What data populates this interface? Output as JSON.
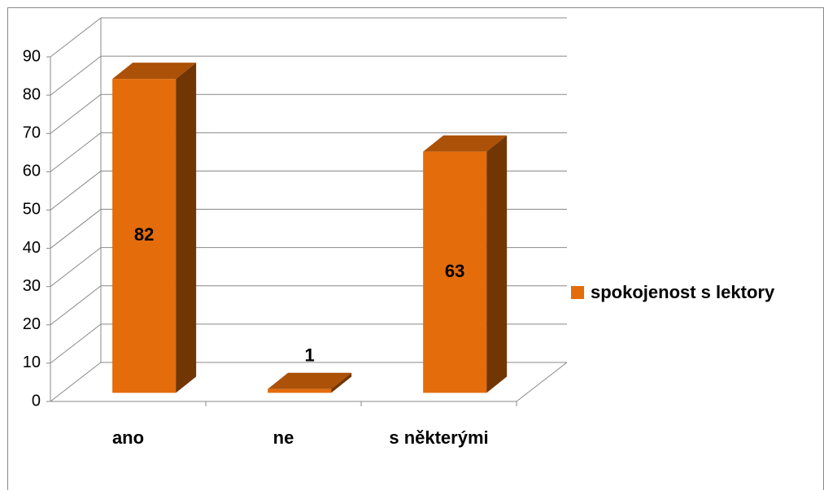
{
  "chart_data": {
    "type": "bar3d",
    "categories": [
      "ano",
      "ne",
      "s některými"
    ],
    "series": [
      {
        "name": "spokojenost s lektory",
        "color": "#e46c0a",
        "values": [
          82,
          1,
          63
        ]
      }
    ],
    "ylim": [
      0,
      90
    ],
    "yticks": [
      0,
      10,
      20,
      30,
      40,
      50,
      60,
      70,
      80,
      90
    ],
    "grid": true,
    "legend": "right"
  }
}
